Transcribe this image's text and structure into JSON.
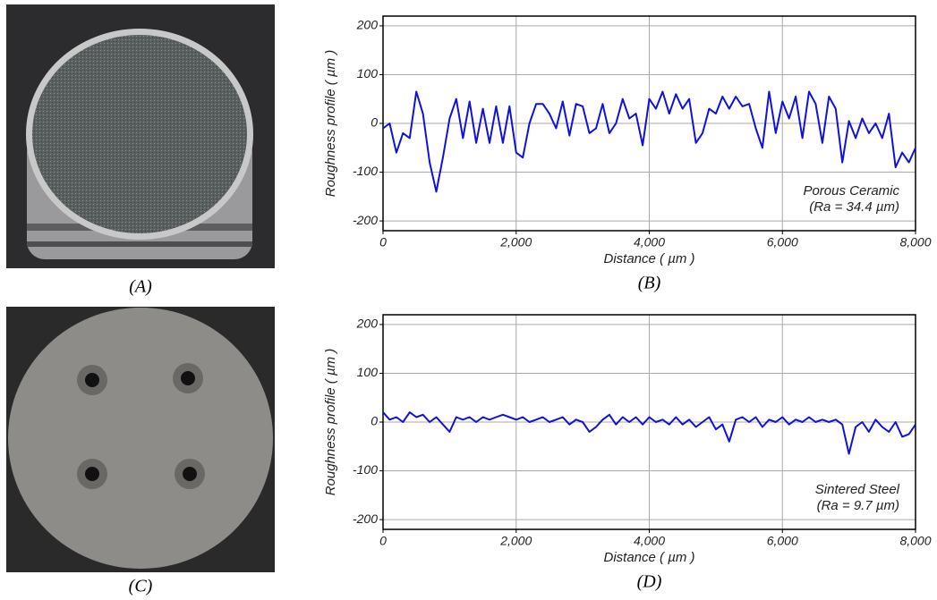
{
  "photos": [
    {
      "caption": "(A)"
    },
    {
      "caption": "(C)"
    }
  ],
  "chart_data": [
    {
      "type": "line",
      "caption": "(B)",
      "x_label": "Distance ( µm )",
      "y_label": "Roughness profile ( µm )",
      "annotation": [
        "Porous Ceramic",
        "(Ra = 34.4 µm)"
      ],
      "xlim": [
        0,
        8000
      ],
      "ylim": [
        -220,
        220
      ],
      "xticks": [
        0,
        {
          "value": 2000,
          "label": "2,000"
        },
        {
          "value": 4000,
          "label": "4,000"
        },
        {
          "value": 6000,
          "label": "6,000"
        },
        {
          "value": 8000,
          "label": "8,000"
        }
      ],
      "yticks": [
        -200,
        -100,
        0,
        100,
        200
      ],
      "grid": true,
      "x": [
        0,
        100,
        200,
        300,
        400,
        500,
        600,
        700,
        800,
        900,
        1000,
        1100,
        1200,
        1300,
        1400,
        1500,
        1600,
        1700,
        1800,
        1900,
        2000,
        2100,
        2200,
        2300,
        2400,
        2500,
        2600,
        2700,
        2800,
        2900,
        3000,
        3100,
        3200,
        3300,
        3400,
        3500,
        3600,
        3700,
        3800,
        3900,
        4000,
        4100,
        4200,
        4300,
        4400,
        4500,
        4600,
        4700,
        4800,
        4900,
        5000,
        5100,
        5200,
        5300,
        5400,
        5500,
        5600,
        5700,
        5800,
        5900,
        6000,
        6100,
        6200,
        6300,
        6400,
        6500,
        6600,
        6700,
        6800,
        6900,
        7000,
        7100,
        7200,
        7300,
        7400,
        7500,
        7600,
        7700,
        7800,
        7900,
        8000
      ],
      "series": [
        {
          "name": "Porous Ceramic",
          "color": "#1010e0",
          "values": [
            -10,
            0,
            -60,
            -20,
            -30,
            65,
            20,
            -80,
            -140,
            -70,
            10,
            50,
            -30,
            45,
            -40,
            30,
            -40,
            35,
            -40,
            35,
            -60,
            -70,
            0,
            40,
            40,
            20,
            -10,
            45,
            -25,
            40,
            35,
            -20,
            -10,
            40,
            -20,
            0,
            50,
            10,
            20,
            -45,
            50,
            30,
            65,
            20,
            60,
            30,
            50,
            -40,
            -20,
            30,
            20,
            55,
            30,
            55,
            35,
            40,
            -10,
            -50,
            65,
            -20,
            45,
            10,
            55,
            -30,
            65,
            40,
            -40,
            55,
            30,
            -80,
            5,
            -30,
            10,
            -20,
            0,
            -30,
            20,
            -90,
            -60,
            -80,
            -50
          ]
        }
      ]
    },
    {
      "type": "line",
      "caption": "(D)",
      "x_label": "Distance ( µm )",
      "y_label": "Roughness profile ( µm )",
      "annotation": [
        "Sintered Steel",
        "(Ra = 9.7 µm)"
      ],
      "xlim": [
        0,
        8000
      ],
      "ylim": [
        -220,
        220
      ],
      "xticks": [
        0,
        {
          "value": 2000,
          "label": "2,000"
        },
        {
          "value": 4000,
          "label": "4,000"
        },
        {
          "value": 6000,
          "label": "6,000"
        },
        {
          "value": 8000,
          "label": "8,000"
        }
      ],
      "yticks": [
        -200,
        -100,
        0,
        100,
        200
      ],
      "grid": true,
      "x": [
        0,
        100,
        200,
        300,
        400,
        500,
        600,
        700,
        800,
        900,
        1000,
        1100,
        1200,
        1300,
        1400,
        1500,
        1600,
        1700,
        1800,
        1900,
        2000,
        2100,
        2200,
        2300,
        2400,
        2500,
        2600,
        2700,
        2800,
        2900,
        3000,
        3100,
        3200,
        3300,
        3400,
        3500,
        3600,
        3700,
        3800,
        3900,
        4000,
        4100,
        4200,
        4300,
        4400,
        4500,
        4600,
        4700,
        4800,
        4900,
        5000,
        5100,
        5200,
        5300,
        5400,
        5500,
        5600,
        5700,
        5800,
        5900,
        6000,
        6100,
        6200,
        6300,
        6400,
        6500,
        6600,
        6700,
        6800,
        6900,
        7000,
        7100,
        7200,
        7300,
        7400,
        7500,
        7600,
        7700,
        7800,
        7900,
        8000
      ],
      "series": [
        {
          "name": "Sintered Steel",
          "color": "#1010e0",
          "values": [
            20,
            5,
            10,
            0,
            20,
            10,
            15,
            0,
            10,
            -5,
            -20,
            10,
            5,
            10,
            0,
            10,
            5,
            10,
            15,
            10,
            5,
            10,
            0,
            5,
            10,
            0,
            5,
            10,
            -5,
            5,
            0,
            -20,
            -10,
            5,
            15,
            -5,
            10,
            0,
            10,
            -5,
            10,
            0,
            5,
            -5,
            10,
            -5,
            5,
            -10,
            0,
            10,
            -15,
            -5,
            -40,
            5,
            10,
            0,
            10,
            -10,
            5,
            0,
            10,
            -5,
            5,
            0,
            10,
            0,
            5,
            0,
            5,
            -5,
            -65,
            -10,
            0,
            -20,
            5,
            -10,
            -20,
            0,
            -30,
            -25,
            -5
          ]
        }
      ]
    }
  ]
}
